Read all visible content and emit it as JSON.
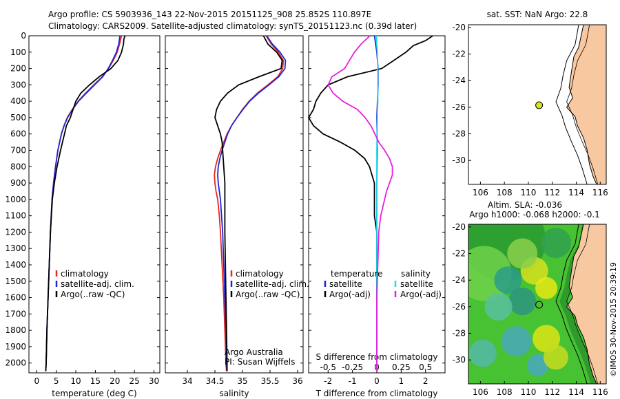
{
  "header": {
    "line1": "Argo profile: CS 5903936_143 22-Nov-2015 20151125_908 25.852S 110.897E",
    "line2": "Climatology: CARS2009. Satellite-adjusted climatology: synTS_20151123.nc (0.39d later)"
  },
  "colors": {
    "climatology": "#e8261e",
    "satellite": "#1f23d6",
    "argo": "#000000",
    "sat_s": "#22d8e8",
    "argo_s": "#e81ee0",
    "land": "#f8c8a0",
    "dot": "#d8e620"
  },
  "depth_axis": {
    "ticks": [
      "0",
      "100",
      "200",
      "300",
      "400",
      "500",
      "600",
      "700",
      "800",
      "900",
      "1000",
      "1100",
      "1200",
      "1300",
      "1400",
      "1500",
      "1600",
      "1700",
      "1800",
      "1900",
      "2000"
    ]
  },
  "chart_data": [
    {
      "type": "line",
      "xlabel": "temperature (deg C)",
      "xticks": [
        "0",
        "5",
        "10",
        "15",
        "20",
        "25",
        "30"
      ],
      "xlim": [
        -2,
        31.5
      ],
      "ylim": [
        0,
        2060
      ],
      "legend": [
        "climatology",
        "satellite-adj. clim.",
        "Argo(..raw -QC)"
      ],
      "series": [
        {
          "name": "climatology",
          "depth": [
            0,
            50,
            100,
            150,
            200,
            250,
            300,
            350,
            400,
            450,
            500,
            550,
            600,
            700,
            800,
            900,
            1000,
            1200,
            1400,
            1600,
            1800,
            2000,
            2050
          ],
          "values": [
            21.7,
            21.2,
            20.6,
            19.6,
            18.4,
            16.8,
            14.6,
            12.5,
            10.6,
            9.1,
            7.8,
            7.0,
            6.3,
            5.4,
            4.8,
            4.3,
            3.9,
            3.5,
            3.2,
            2.9,
            2.6,
            2.4,
            2.3
          ]
        },
        {
          "name": "satellite-adj. clim.",
          "depth": [
            0,
            50,
            100,
            150,
            200,
            250,
            300,
            350,
            400,
            450,
            500,
            550,
            600,
            700,
            800,
            900,
            1000,
            1200,
            1400,
            1600,
            1800,
            2000,
            2050
          ],
          "values": [
            21.3,
            21.0,
            20.4,
            19.4,
            18.3,
            16.9,
            14.8,
            12.7,
            10.7,
            9.2,
            7.9,
            7.0,
            6.3,
            5.4,
            4.8,
            4.3,
            3.9,
            3.5,
            3.2,
            2.9,
            2.6,
            2.4,
            2.3
          ]
        },
        {
          "name": "Argo(..raw -QC)",
          "depth": [
            0,
            20,
            50,
            100,
            150,
            200,
            250,
            300,
            350,
            400,
            450,
            500,
            550,
            600,
            700,
            800,
            900,
            1000,
            1200,
            1400,
            1600,
            1800,
            2000,
            2050
          ],
          "values": [
            22.6,
            22.3,
            22.2,
            21.7,
            20.8,
            19.0,
            16.0,
            13.5,
            11.3,
            10.0,
            9.3,
            8.6,
            7.6,
            7.1,
            6.1,
            5.2,
            4.5,
            4.0,
            3.5,
            3.2,
            2.9,
            2.6,
            2.4,
            2.3
          ]
        }
      ]
    },
    {
      "type": "line",
      "xlabel": "salinity",
      "xticks": [
        "34",
        "34.5",
        "35",
        "35.5",
        "36"
      ],
      "xlim": [
        33.6,
        36.1
      ],
      "ylim": [
        0,
        2060
      ],
      "legend": [
        "climatology",
        "satellite-adj. clim.",
        "Argo(..raw -QC)"
      ],
      "annotation": [
        "Argo Australia",
        "PI: Susan Wijffels"
      ],
      "series": [
        {
          "name": "climatology",
          "depth": [
            0,
            50,
            100,
            150,
            200,
            250,
            300,
            350,
            400,
            450,
            500,
            550,
            600,
            650,
            700,
            750,
            800,
            850,
            900,
            950,
            1000,
            1100,
            1200,
            1400,
            1600,
            1800,
            2000,
            2050
          ],
          "values": [
            35.43,
            35.52,
            35.65,
            35.74,
            35.73,
            35.64,
            35.46,
            35.27,
            35.12,
            35.0,
            34.9,
            34.8,
            34.72,
            34.66,
            34.6,
            34.55,
            34.51,
            34.49,
            34.5,
            34.52,
            34.55,
            34.58,
            34.6,
            34.63,
            34.66,
            34.68,
            34.7,
            34.71
          ]
        },
        {
          "name": "satellite-adj. clim.",
          "depth": [
            0,
            50,
            100,
            150,
            200,
            250,
            300,
            350,
            400,
            450,
            500,
            550,
            600,
            650,
            700,
            750,
            800,
            850,
            900,
            950,
            1000,
            1100,
            1200,
            1400,
            1600,
            1800,
            2000,
            2050
          ],
          "values": [
            35.44,
            35.54,
            35.68,
            35.78,
            35.77,
            35.66,
            35.48,
            35.29,
            35.13,
            35.01,
            34.9,
            34.8,
            34.73,
            34.68,
            34.63,
            34.59,
            34.56,
            34.55,
            34.56,
            34.58,
            34.6,
            34.62,
            34.64,
            34.66,
            34.68,
            34.7,
            34.71,
            34.72
          ]
        },
        {
          "name": "Argo(..raw -QC)",
          "depth": [
            0,
            50,
            100,
            150,
            200,
            250,
            300,
            350,
            400,
            450,
            500,
            550,
            600,
            650,
            700,
            750,
            800,
            850,
            900,
            950,
            1000,
            1100,
            1200,
            1400,
            1600,
            1800,
            2000,
            2050
          ],
          "values": [
            35.38,
            35.46,
            35.62,
            35.72,
            35.7,
            35.3,
            34.93,
            34.73,
            34.6,
            34.53,
            34.5,
            34.55,
            34.6,
            34.63,
            34.64,
            34.65,
            34.66,
            34.67,
            34.68,
            34.68,
            34.68,
            34.68,
            34.68,
            34.69,
            34.7,
            34.71,
            34.72,
            34.72
          ]
        }
      ]
    },
    {
      "type": "line",
      "xlabel": "T difference from climatology",
      "xlabel_top": "S difference from climatology",
      "xticks_bottom": [
        "-2",
        "-1",
        "0",
        "1",
        "2"
      ],
      "xticks_top": [
        "-0.5",
        "-0.25",
        "0",
        "0.25",
        "0.5"
      ],
      "xlim": [
        -2.8,
        2.8
      ],
      "ylim": [
        0,
        2060
      ],
      "legend_t": [
        "temperature",
        "satellite",
        "Argo(-adj)"
      ],
      "legend_s": [
        "salinity",
        "satellite",
        "Argo(-adj)"
      ],
      "series": [
        {
          "name": "T satellite",
          "depth": [
            0,
            100,
            200,
            300,
            500,
            700,
            900,
            1200,
            1500,
            2050
          ],
          "values": [
            -0.1,
            0.0,
            0.05,
            0.05,
            0.0,
            0.02,
            0.0,
            0.0,
            0.0,
            0.0
          ]
        },
        {
          "name": "T Argo(-adj)",
          "depth": [
            0,
            30,
            60,
            100,
            150,
            200,
            250,
            300,
            350,
            400,
            450,
            500,
            550,
            600,
            650,
            700,
            750,
            800,
            850,
            900,
            1000,
            1100,
            1200,
            1400,
            1600,
            2050
          ],
          "values": [
            2.3,
            2.0,
            1.5,
            1.2,
            0.7,
            0.2,
            -1.2,
            -2.0,
            -2.3,
            -2.5,
            -2.6,
            -2.8,
            -2.6,
            -2.2,
            -1.5,
            -0.9,
            -0.5,
            -0.3,
            -0.2,
            -0.1,
            -0.1,
            -0.1,
            0.0,
            0.0,
            0.0,
            0.0
          ]
        },
        {
          "name": "S satellite",
          "depth": [
            0,
            100,
            200,
            300,
            400,
            500,
            700,
            900,
            1200,
            1600,
            2050
          ],
          "values": [
            -0.005,
            0.005,
            0.01,
            0.01,
            0.01,
            0.005,
            0.0,
            0.0,
            0.0,
            0.0,
            0.0
          ]
        },
        {
          "name": "S Argo(-adj)",
          "depth": [
            0,
            50,
            100,
            150,
            200,
            250,
            300,
            350,
            400,
            450,
            500,
            550,
            600,
            650,
            700,
            750,
            800,
            850,
            900,
            950,
            1000,
            1100,
            1200,
            1400,
            1600,
            2050
          ],
          "values": [
            -0.07,
            -0.16,
            -0.23,
            -0.28,
            -0.33,
            -0.46,
            -0.5,
            -0.45,
            -0.35,
            -0.2,
            -0.12,
            -0.06,
            -0.02,
            0.02,
            0.08,
            0.13,
            0.16,
            0.16,
            0.13,
            0.1,
            0.08,
            0.04,
            0.02,
            0.01,
            0.0,
            0.0
          ]
        }
      ]
    }
  ],
  "map_sst": {
    "title": "sat. SST: NaN Argo: 22.8",
    "xticks": [
      "106",
      "108",
      "110",
      "112",
      "114",
      "116"
    ],
    "yticks": [
      "-20",
      "-22",
      "-24",
      "-26",
      "-28",
      "-30"
    ],
    "xlim": [
      105,
      116.5
    ],
    "ylim": [
      -31.8,
      -19.8
    ],
    "argo_lon": 110.9,
    "argo_lat": -25.85
  },
  "map_sla": {
    "title1": "Altim. SLA: -0.036",
    "title2": "Argo h1000: -0.068 h2000: -0.1",
    "xticks": [
      "106",
      "108",
      "110",
      "112",
      "114",
      "116"
    ],
    "yticks": [
      "-20",
      "-22",
      "-24",
      "-26",
      "-28",
      "-30"
    ],
    "xlim": [
      105,
      116.5
    ],
    "ylim": [
      -31.8,
      -19.8
    ],
    "argo_lon": 110.9,
    "argo_lat": -25.85
  },
  "credit": "©IMOS 30-Nov-2015 20:39:19"
}
